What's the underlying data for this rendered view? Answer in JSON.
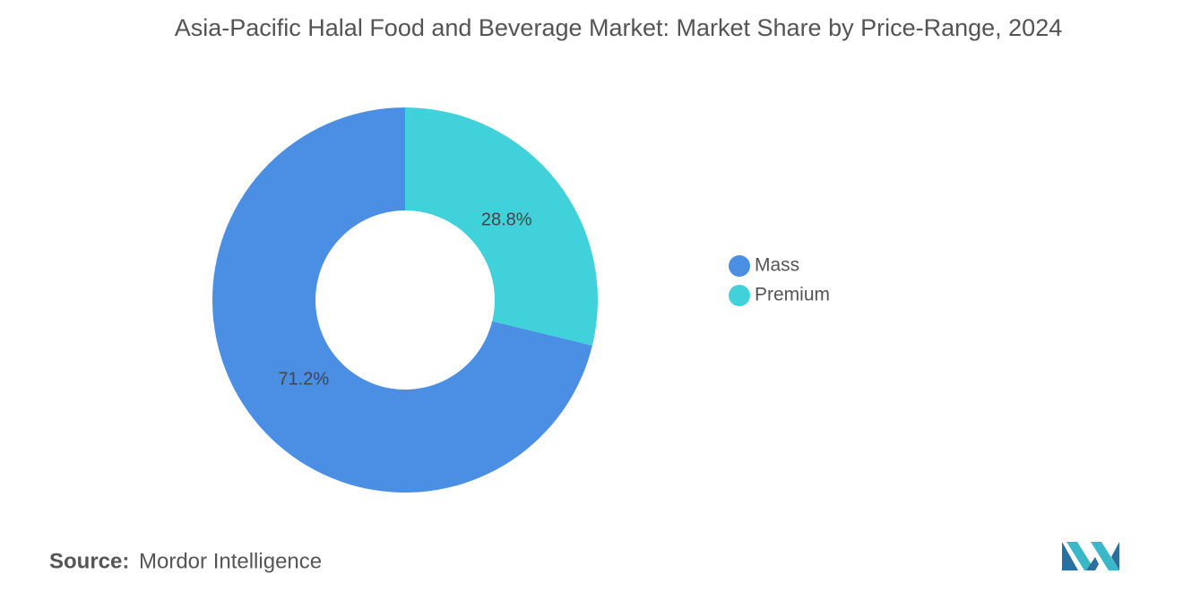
{
  "chart_data": {
    "type": "pie",
    "donut": true,
    "title": "Asia-Pacific Halal Food and Beverage Market: Market Share by Price-Range, 2024",
    "categories": [
      "Mass",
      "Premium"
    ],
    "values": [
      71.2,
      28.8
    ],
    "value_labels": [
      "71.2%",
      "28.8%"
    ],
    "colors": [
      "#4a8fe3",
      "#41d1db"
    ],
    "legend": "right",
    "source_label": "Source:",
    "source": "Mordor Intelligence"
  }
}
